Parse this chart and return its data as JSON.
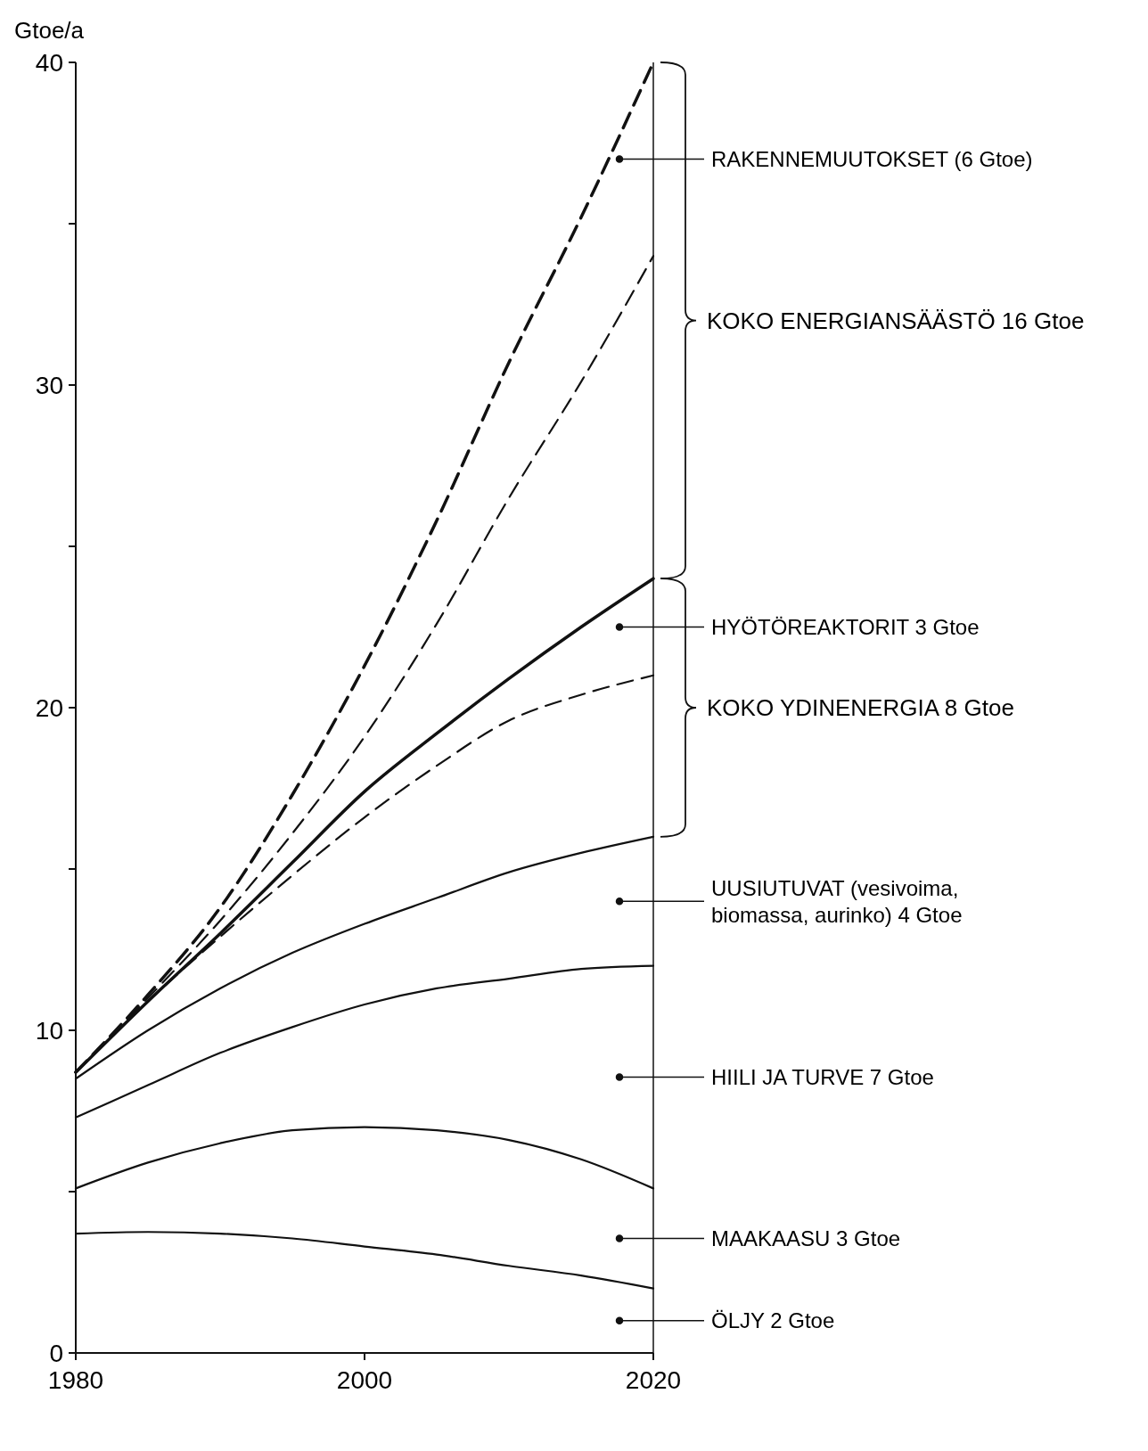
{
  "chart_data": {
    "type": "line",
    "ylabel": "Gtoe/a",
    "x": [
      1980,
      1985,
      1990,
      1995,
      2000,
      2005,
      2010,
      2015,
      2020
    ],
    "xlim": [
      1980,
      2020
    ],
    "xticks": [
      1980,
      2000,
      2020
    ],
    "ylim": [
      0,
      40
    ],
    "yticks": [
      0,
      {
        "value": 5,
        "label": null
      },
      10,
      {
        "value": 15,
        "label": null
      },
      20,
      {
        "value": 25,
        "label": null
      },
      30,
      {
        "value": 35,
        "label": null
      },
      40
    ],
    "grid": false,
    "marker": "none",
    "series": [
      {
        "color": "#111111",
        "line_style": "solid",
        "values": [
          3.7,
          3.75,
          3.7,
          3.55,
          3.3,
          3.05,
          2.7,
          2.4,
          2.0
        ]
      },
      {
        "color": "#111111",
        "line_style": "solid",
        "values": [
          5.1,
          5.9,
          6.5,
          6.9,
          7.0,
          6.9,
          6.6,
          6.0,
          5.1
        ]
      },
      {
        "color": "#111111",
        "line_style": "solid",
        "values": [
          7.3,
          8.3,
          9.3,
          10.1,
          10.8,
          11.3,
          11.6,
          11.9,
          12.0
        ]
      },
      {
        "color": "#111111",
        "line_style": "solid",
        "values": [
          8.5,
          10.0,
          11.3,
          12.4,
          13.3,
          14.1,
          14.9,
          15.5,
          16.0
        ]
      },
      {
        "color": "#111111",
        "line_style": "solid",
        "values": [
          8.7,
          10.9,
          13.0,
          15.2,
          17.4,
          19.2,
          20.9,
          22.5,
          24.0
        ]
      },
      {
        "color": "#111111",
        "line_style": "dashed",
        "values": [
          8.7,
          10.9,
          12.9,
          14.8,
          16.6,
          18.2,
          19.6,
          20.4,
          21.0
        ]
      },
      {
        "color": "#111111",
        "line_style": "dashed",
        "values": [
          8.7,
          11.0,
          13.4,
          16.1,
          19.1,
          22.6,
          26.5,
          30.1,
          34.0
        ]
      },
      {
        "color": "#111111",
        "line_style": "dashed",
        "values": [
          8.7,
          11.1,
          13.8,
          17.3,
          21.3,
          25.8,
          30.7,
          35.2,
          40.0
        ]
      }
    ],
    "annotations": [
      "KOKO ENERGIANSÄÄSTÖ 16 Gtoe",
      "KOKO YDINENERGIA 8 Gtoe",
      "RAKENNEMUUTOKSET (6 Gtoe)",
      "HYÖTÖREAKTORIT 3 Gtoe",
      "UUSIUTUVAT (vesivoima, biomassa, aurinko) 4 Gtoe",
      "HIILI JA TURVE 7 Gtoe",
      "MAAKAASU 3 Gtoe",
      "ÖLJY 2 Gtoe"
    ]
  }
}
